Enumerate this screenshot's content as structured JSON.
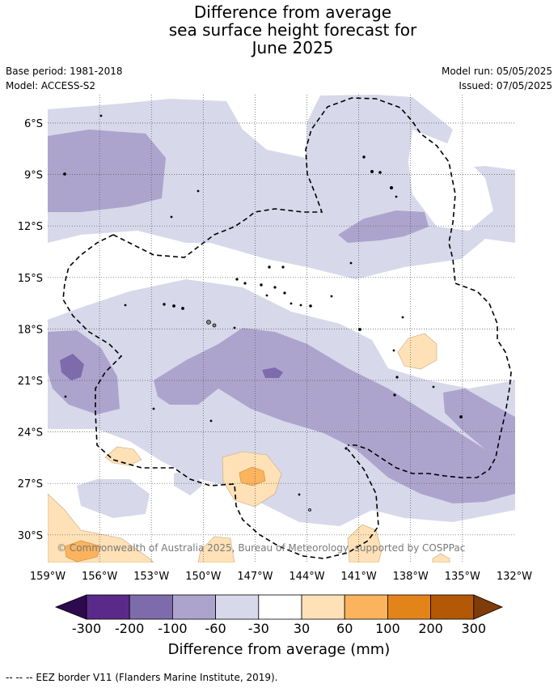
{
  "title": {
    "line1": "Difference from average",
    "line2": "sea surface height forecast for",
    "line3": "June 2025"
  },
  "meta": {
    "base_period": "Base period: 1981-2018",
    "model": "Model: ACCESS-S2",
    "model_run": "Model run: 05/05/2025",
    "issued": "Issued: 07/05/2025"
  },
  "axes": {
    "lon_labels": [
      "159°W",
      "156°W",
      "153°W",
      "150°W",
      "147°W",
      "144°W",
      "141°W",
      "138°W",
      "135°W",
      "132°W"
    ],
    "lat_labels": [
      "6°S",
      "9°S",
      "12°S",
      "15°S",
      "18°S",
      "21°S",
      "24°S",
      "27°S",
      "30°S"
    ]
  },
  "copyright": "© Commonwealth of Australia 2025, Bureau of Meteorology, supported by COSPPac",
  "colorbar": {
    "ticks": [
      "-300",
      "-200",
      "-100",
      "-60",
      "-30",
      "30",
      "60",
      "100",
      "200",
      "300"
    ],
    "colors": [
      "#2d0a4e",
      "#5a2a8a",
      "#7d6bab",
      "#ada4ce",
      "#d7d8ea",
      "#ffffff",
      "#fee1b6",
      "#fbb45d",
      "#e3841a",
      "#b35806",
      "#7f3b08"
    ],
    "label": "Difference from average (mm)"
  },
  "legend_note": "--  --  -- EEZ border V11 (Flanders Marine Institute, 2019)."
}
